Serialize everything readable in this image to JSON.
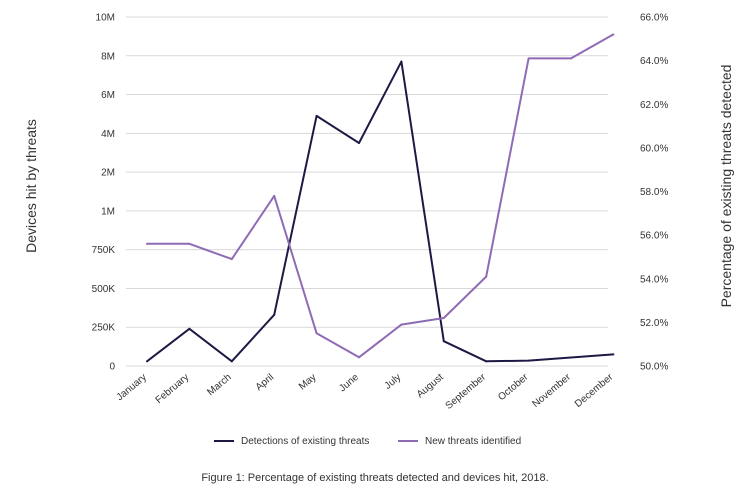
{
  "chart_data": {
    "type": "line",
    "categories": [
      "January",
      "February",
      "March",
      "April",
      "May",
      "June",
      "July",
      "August",
      "September",
      "October",
      "November",
      "December"
    ],
    "left_axis": {
      "label": "Devices hit by threats",
      "ticks": [
        "0",
        "250K",
        "500K",
        "750K",
        "1M",
        "2M",
        "4M",
        "6M",
        "8M",
        "10M"
      ]
    },
    "right_axis": {
      "label": "Percentage of existing threats detected",
      "ticks": [
        "50.0%",
        "52.0%",
        "54.0%",
        "56.0%",
        "58.0%",
        "60.0%",
        "62.0%",
        "64.0%",
        "66.0%"
      ],
      "range": [
        50,
        66
      ]
    },
    "series": [
      {
        "name": "Detections of existing threats",
        "color": "#1c1a45",
        "axis": "left",
        "note_scale": "left axis is piecewise: 0-1M linear by 250K, then 1M-10M by 2M steps",
        "values": [
          30000,
          240000,
          30000,
          330000,
          4900000,
          3500000,
          7700000,
          160000,
          30000,
          35000,
          55000,
          75000
        ]
      },
      {
        "name": "New threats identified",
        "color": "#8f6bb5",
        "axis": "right",
        "values": [
          55.6,
          55.6,
          54.9,
          57.8,
          51.5,
          50.4,
          51.9,
          52.2,
          54.1,
          64.1,
          64.1,
          65.2
        ]
      }
    ],
    "grid": "horizontal",
    "legend": "bottom"
  },
  "caption": "Figure 1: Percentage of existing threats detected and devices hit, 2018."
}
